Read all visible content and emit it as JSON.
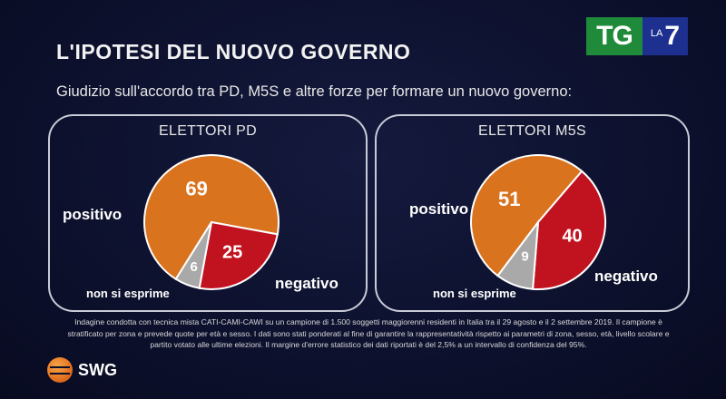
{
  "header": {
    "title": "L'IPOTESI DEL NUOVO GOVERNO",
    "subtitle": "Giudizio sull'accordo tra PD, M5S e altre forze per formare un nuovo governo:"
  },
  "broadcaster": {
    "tg": "TG",
    "la": "LA",
    "seven": "7"
  },
  "colors": {
    "positivo": "#d9731e",
    "negativo": "#c1121f",
    "non_si_esprime": "#a9a9a9"
  },
  "chart_data": [
    {
      "type": "pie",
      "title": "ELETTORI PD",
      "slices": [
        {
          "label": "positivo",
          "value": 69
        },
        {
          "label": "negativo",
          "value": 25
        },
        {
          "label": "non si esprime",
          "value": 6
        }
      ]
    },
    {
      "type": "pie",
      "title": "ELETTORI M5S",
      "slices": [
        {
          "label": "positivo",
          "value": 51
        },
        {
          "label": "negativo",
          "value": 40
        },
        {
          "label": "non si esprime",
          "value": 9
        }
      ]
    }
  ],
  "footnote": "Indagine condotta con tecnica mista CATI-CAMI-CAWI su un campione di 1.500 soggetti maggiorenni residenti in Italia tra il 29 agosto e il 2 settembre 2019. Il campione è stratificato per zona e prevede quote per età e sesso. I dati sono stati ponderati al fine di garantire la rappresentatività rispetto ai parametri di zona, sesso, età, livello scolare e partito votato alle ultime elezioni. Il margine d'errore statistico dei dati riportati è del 2,5% a un intervallo di confidenza del 95%.",
  "source": {
    "name": "SWG"
  }
}
